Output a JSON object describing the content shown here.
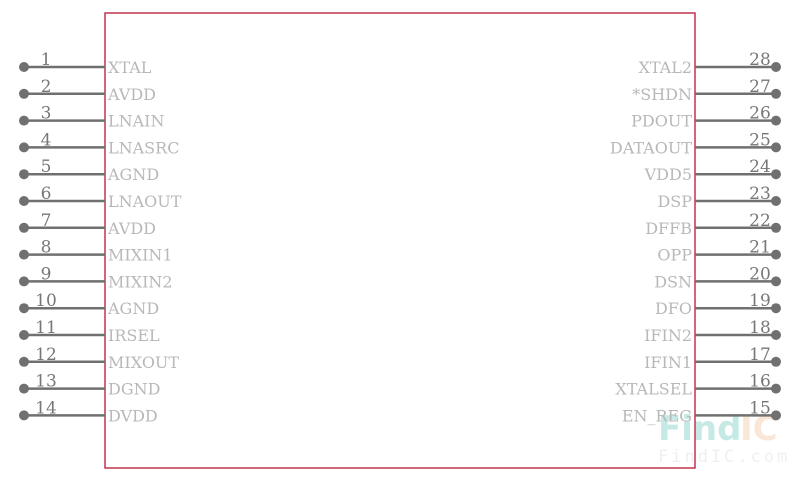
{
  "component": {
    "body_color": "#c0344f",
    "pin_color": "#707070",
    "label_color": "#b8b8b8",
    "left_pins": [
      {
        "number": "1",
        "name": "XTAL"
      },
      {
        "number": "2",
        "name": "AVDD"
      },
      {
        "number": "3",
        "name": "LNAIN"
      },
      {
        "number": "4",
        "name": "LNASRC"
      },
      {
        "number": "5",
        "name": "AGND"
      },
      {
        "number": "6",
        "name": "LNAOUT"
      },
      {
        "number": "7",
        "name": "AVDD"
      },
      {
        "number": "8",
        "name": "MIXIN1"
      },
      {
        "number": "9",
        "name": "MIXIN2"
      },
      {
        "number": "10",
        "name": "AGND"
      },
      {
        "number": "11",
        "name": "IRSEL"
      },
      {
        "number": "12",
        "name": "MIXOUT"
      },
      {
        "number": "13",
        "name": "DGND"
      },
      {
        "number": "14",
        "name": "DVDD"
      }
    ],
    "right_pins": [
      {
        "number": "28",
        "name": "XTAL2"
      },
      {
        "number": "27",
        "name": "*SHDN"
      },
      {
        "number": "26",
        "name": "PDOUT"
      },
      {
        "number": "25",
        "name": "DATAOUT"
      },
      {
        "number": "24",
        "name": "VDD5"
      },
      {
        "number": "23",
        "name": "DSP"
      },
      {
        "number": "22",
        "name": "DFFB"
      },
      {
        "number": "21",
        "name": "OPP"
      },
      {
        "number": "20",
        "name": "DSN"
      },
      {
        "number": "19",
        "name": "DFO"
      },
      {
        "number": "18",
        "name": "IFIN2"
      },
      {
        "number": "17",
        "name": "IFIN1"
      },
      {
        "number": "16",
        "name": "XTALSEL"
      },
      {
        "number": "15",
        "name": "EN_REG"
      }
    ]
  },
  "watermark": {
    "logo_left": "Find",
    "logo_right": "IC",
    "url": "FindIC.com",
    "color_left": "#7fd0c4",
    "color_right": "#f5c9a8"
  }
}
